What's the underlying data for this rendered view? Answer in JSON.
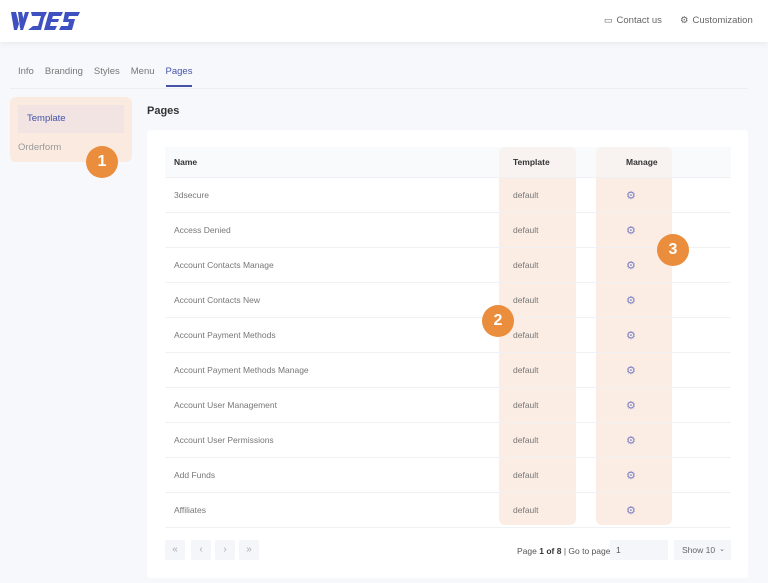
{
  "header": {
    "logo": "WDES",
    "contact": "Contact us",
    "customization": "Customization"
  },
  "tabs": [
    {
      "label": "Info"
    },
    {
      "label": "Branding"
    },
    {
      "label": "Styles"
    },
    {
      "label": "Menu"
    },
    {
      "label": "Pages",
      "active": true
    }
  ],
  "sidebar": {
    "items": [
      {
        "label": "Template"
      },
      {
        "label": "Orderform"
      }
    ]
  },
  "section_title": "Pages",
  "table": {
    "headers": {
      "name": "Name",
      "template": "Template",
      "manage": "Manage"
    },
    "rows": [
      {
        "name": "3dsecure",
        "template": "default"
      },
      {
        "name": "Access Denied",
        "template": "default"
      },
      {
        "name": "Account Contacts Manage",
        "template": "default"
      },
      {
        "name": "Account Contacts New",
        "template": "default"
      },
      {
        "name": "Account Payment Methods",
        "template": "default"
      },
      {
        "name": "Account Payment Methods Manage",
        "template": "default"
      },
      {
        "name": "Account User Management",
        "template": "default"
      },
      {
        "name": "Account User Permissions",
        "template": "default"
      },
      {
        "name": "Add Funds",
        "template": "default"
      },
      {
        "name": "Affiliates",
        "template": "default"
      }
    ]
  },
  "pagination": {
    "first": "«",
    "prev": "‹",
    "next": "›",
    "last": "»",
    "page_label": "Page",
    "page_bold": "1 of 8",
    "goto_label": "| Go to page:",
    "goto_value": "1",
    "show": "Show 10"
  },
  "badges": [
    "1",
    "2",
    "3"
  ],
  "colors": {
    "accent": "#4453a8",
    "highlight": "#fcede4",
    "badge": "#ea8e3e"
  }
}
